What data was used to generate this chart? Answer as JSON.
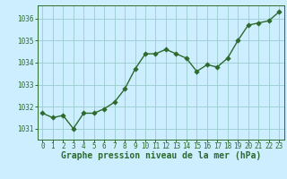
{
  "x": [
    0,
    1,
    2,
    3,
    4,
    5,
    6,
    7,
    8,
    9,
    10,
    11,
    12,
    13,
    14,
    15,
    16,
    17,
    18,
    19,
    20,
    21,
    22,
    23
  ],
  "y": [
    1031.7,
    1031.5,
    1031.6,
    1031.0,
    1031.7,
    1031.7,
    1031.9,
    1032.2,
    1032.8,
    1033.7,
    1034.4,
    1034.4,
    1034.6,
    1034.4,
    1034.2,
    1033.6,
    1033.9,
    1033.8,
    1034.2,
    1035.0,
    1035.7,
    1035.8,
    1035.9,
    1036.3
  ],
  "line_color": "#2d6a2d",
  "marker_color": "#2d6a2d",
  "bg_color": "#cceeff",
  "grid_color": "#99cccc",
  "axis_label_color": "#2d6a2d",
  "tick_label_color": "#2d6a2d",
  "xlabel": "Graphe pression niveau de la mer (hPa)",
  "ylim": [
    1030.5,
    1036.6
  ],
  "yticks": [
    1031,
    1032,
    1033,
    1034,
    1035,
    1036
  ],
  "xticks": [
    0,
    1,
    2,
    3,
    4,
    5,
    6,
    7,
    8,
    9,
    10,
    11,
    12,
    13,
    14,
    15,
    16,
    17,
    18,
    19,
    20,
    21,
    22,
    23
  ],
  "line_width": 1.0,
  "marker_size": 2.8,
  "xlabel_fontsize": 7.0,
  "tick_fontsize": 5.5
}
